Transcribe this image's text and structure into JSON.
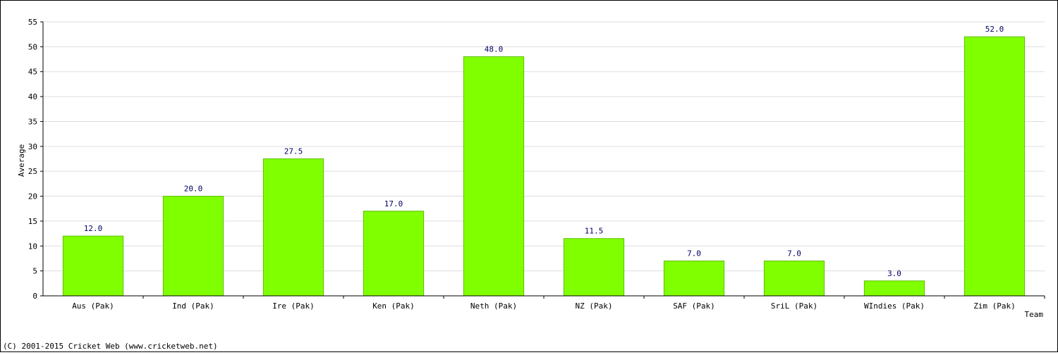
{
  "chart_data": {
    "type": "bar",
    "categories": [
      "Aus (Pak)",
      "Ind (Pak)",
      "Ire (Pak)",
      "Ken (Pak)",
      "Neth (Pak)",
      "NZ (Pak)",
      "SAF (Pak)",
      "SriL (Pak)",
      "WIndies (Pak)",
      "Zim (Pak)"
    ],
    "values": [
      12.0,
      20.0,
      27.5,
      17.0,
      48.0,
      11.5,
      7.0,
      7.0,
      3.0,
      52.0
    ],
    "value_labels": [
      "12.0",
      "20.0",
      "27.5",
      "17.0",
      "48.0",
      "11.5",
      "7.0",
      "7.0",
      "3.0",
      "52.0"
    ],
    "title": "",
    "xlabel": "Team",
    "ylabel": "Average",
    "ylim": [
      0,
      55
    ],
    "yticks": [
      "0",
      "5",
      "10",
      "15",
      "20",
      "25",
      "30",
      "35",
      "40",
      "45",
      "50",
      "55"
    ],
    "grid": true,
    "legend": "none",
    "colors": {
      "bar": "#80ff00",
      "bar_border": "#5fbf00",
      "grid": "#dddddd",
      "value_label": "#000066"
    }
  },
  "footer": {
    "copyright": "(C) 2001-2015 Cricket Web (www.cricketweb.net)"
  }
}
